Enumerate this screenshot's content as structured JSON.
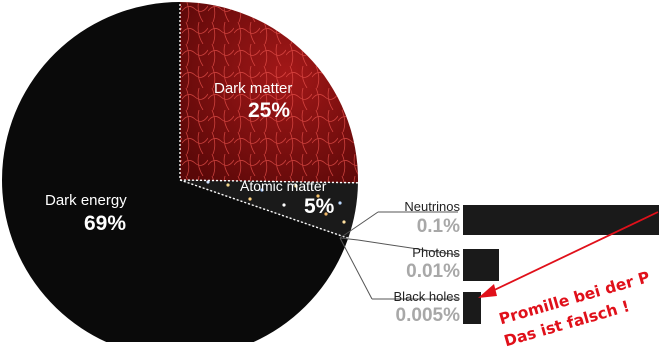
{
  "chart_data": [
    {
      "type": "pie",
      "slices": [
        {
          "name": "Dark energy",
          "value": 69,
          "label": "69%",
          "color": "#0a0a0a"
        },
        {
          "name": "Dark matter",
          "value": 25,
          "label": "25%",
          "color": "#7a1010"
        },
        {
          "name": "Atomic matter",
          "value": 5,
          "label": "5%",
          "color": "#1a1a1a"
        }
      ]
    },
    {
      "type": "bar",
      "orientation": "horizontal",
      "categories": [
        "Neutrinos",
        "Photons",
        "Black holes"
      ],
      "values": [
        0.1,
        0.01,
        0.005
      ],
      "labels": [
        "0.1%",
        "0.01%",
        "0.005%"
      ],
      "color": "#1a1a1a"
    }
  ],
  "annotation": {
    "line1": "Promille bei der P",
    "line2": "Das ist falsch !",
    "color": "#e0101a"
  }
}
